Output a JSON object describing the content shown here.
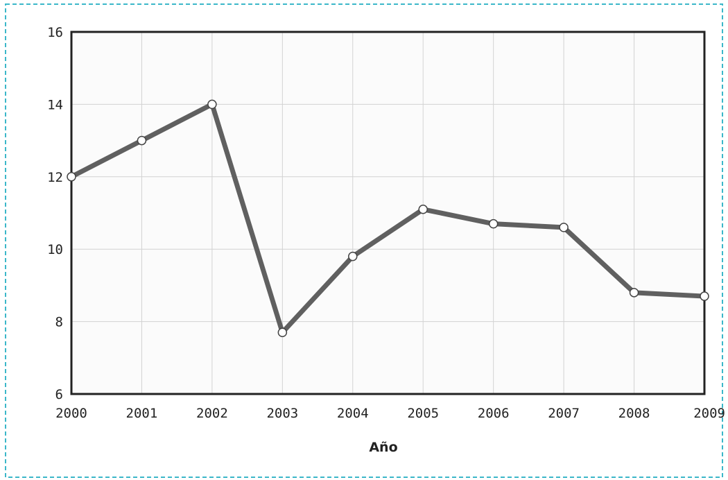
{
  "chart_data": {
    "type": "line",
    "title": "",
    "xlabel": "Año",
    "ylabel": "",
    "x": [
      "2000",
      "2001",
      "2002",
      "2003",
      "2004",
      "2005",
      "2006",
      "2007",
      "2008",
      "2009"
    ],
    "series": [
      {
        "values": [
          12.0,
          13.0,
          14.0,
          7.7,
          9.8,
          11.1,
          10.7,
          10.6,
          8.8,
          8.7
        ]
      }
    ],
    "ylim": [
      6,
      16
    ],
    "yticks": [
      "6",
      "8",
      "10",
      "12",
      "14",
      "16"
    ],
    "grid": true,
    "legend": "none",
    "colors": {
      "line": "#606060",
      "marker_fill": "#ffffff",
      "frame_border": "#3bb7c9"
    }
  }
}
